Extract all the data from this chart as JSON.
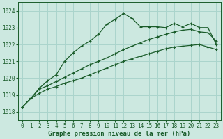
{
  "title": "Graphe pression niveau de la mer (hPa)",
  "bg_color": "#cce8e0",
  "grid_color": "#aad4cc",
  "line_color": "#1a5c2a",
  "ylim": [
    1017.5,
    1024.5
  ],
  "xlim": [
    -0.5,
    23.5
  ],
  "yticks": [
    1018,
    1019,
    1020,
    1021,
    1022,
    1023,
    1024
  ],
  "xticks": [
    0,
    1,
    2,
    3,
    4,
    5,
    6,
    7,
    8,
    9,
    10,
    11,
    12,
    13,
    14,
    15,
    16,
    17,
    18,
    19,
    20,
    21,
    22,
    23
  ],
  "series1_x": [
    0,
    1,
    2,
    3,
    4,
    5,
    6,
    7,
    8,
    9,
    10,
    11,
    12,
    13,
    14,
    15,
    16,
    17,
    18,
    19,
    20,
    21,
    22,
    23
  ],
  "series1_y": [
    1018.3,
    1018.8,
    1019.1,
    1019.35,
    1019.5,
    1019.7,
    1019.85,
    1020.0,
    1020.2,
    1020.4,
    1020.6,
    1020.8,
    1021.0,
    1021.15,
    1021.3,
    1021.45,
    1021.6,
    1021.75,
    1021.85,
    1021.9,
    1021.95,
    1022.0,
    1021.85,
    1021.7
  ],
  "series2_x": [
    0,
    1,
    2,
    3,
    4,
    5,
    6,
    7,
    8,
    9,
    10,
    11,
    12,
    13,
    14,
    15,
    16,
    17,
    18,
    19,
    20,
    21,
    22,
    23
  ],
  "series2_y": [
    1018.3,
    1018.8,
    1019.35,
    1019.55,
    1019.8,
    1020.05,
    1020.3,
    1020.55,
    1020.8,
    1021.0,
    1021.2,
    1021.45,
    1021.7,
    1021.9,
    1022.1,
    1022.3,
    1022.45,
    1022.6,
    1022.75,
    1022.85,
    1022.9,
    1022.75,
    1022.7,
    1022.2
  ],
  "series3_x": [
    0,
    1,
    2,
    3,
    4,
    5,
    6,
    7,
    8,
    9,
    10,
    11,
    12,
    13,
    14,
    15,
    16,
    17,
    18,
    19,
    20,
    21,
    22,
    23
  ],
  "series3_y": [
    1018.3,
    1018.8,
    1019.4,
    1019.85,
    1020.2,
    1021.0,
    1021.5,
    1021.9,
    1022.2,
    1022.6,
    1023.2,
    1023.5,
    1023.85,
    1023.55,
    1023.05,
    1023.05,
    1023.05,
    1023.0,
    1023.25,
    1023.05,
    1023.25,
    1023.0,
    1023.0,
    1022.0
  ],
  "tick_fontsize": 5.5,
  "xlabel_fontsize": 6.5
}
